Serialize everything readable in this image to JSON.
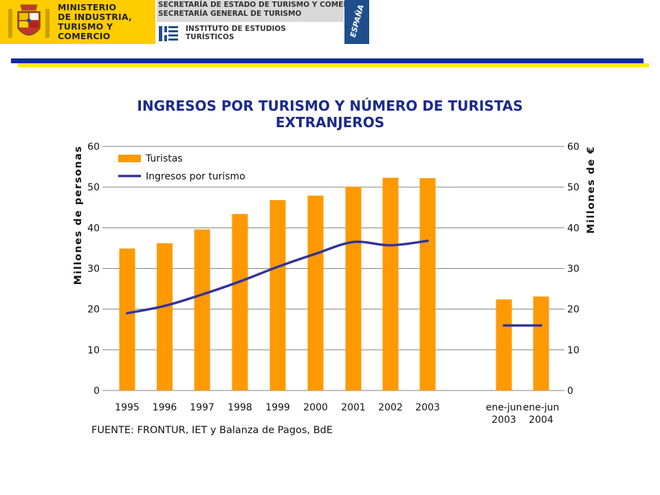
{
  "header": {
    "ministry": [
      "MINISTERIO",
      "DE INDUSTRIA,",
      "TURISMO Y",
      "COMERCIO"
    ],
    "secretaria": [
      "SECRETARÍA DE ESTADO DE TURISMO Y COMERCIO",
      "SECRETARÍA GENERAL DE TURISMO"
    ],
    "instituto": [
      "INSTITUTO DE ESTUDIOS",
      "TURÍSTICOS"
    ],
    "espana": "ESPAÑA",
    "colors": {
      "yellow": "#ffcc00",
      "blue_band": "#0a2aa8",
      "yellow_band": "#ffee00",
      "espana_bg": "#1f4e8c"
    }
  },
  "source": "FUENTE: FRONTUR, IET y Balanza de Pagos, BdE",
  "chart_data": {
    "type": "bar",
    "title": "INGRESOS POR TURISMO Y NÚMERO DE TURISTAS EXTRANJEROS",
    "ylabel_left": "Millones de personas",
    "ylabel_right": "Millones de €",
    "ylim": [
      0,
      60
    ],
    "yticks": [
      0,
      10,
      20,
      30,
      40,
      50,
      60
    ],
    "categories": [
      "1995",
      "1996",
      "1997",
      "1998",
      "1999",
      "2000",
      "2001",
      "2002",
      "2003",
      "ene-jun 2003",
      "ene-jun 2004"
    ],
    "grid": true,
    "legend_position": "top-left",
    "series": [
      {
        "name": "Turistas",
        "type": "bar",
        "color": "#ff9900",
        "values": [
          34.9,
          36.2,
          39.6,
          43.4,
          46.8,
          47.9,
          50.1,
          52.3,
          52.2,
          22.4,
          23.1
        ]
      },
      {
        "name": "Ingresos por turismo",
        "type": "line",
        "color": "#333399",
        "values": [
          19.0,
          20.8,
          23.6,
          26.8,
          30.4,
          33.6,
          36.5,
          35.7,
          36.8,
          16.0,
          16.0
        ]
      }
    ]
  }
}
